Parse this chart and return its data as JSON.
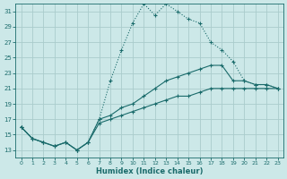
{
  "xlabel": "Humidex (Indice chaleur)",
  "bg_color": "#cce8e8",
  "grid_color": "#aacccc",
  "line_color": "#1a6b6b",
  "xlim": [
    -0.5,
    23.5
  ],
  "ylim": [
    12,
    32
  ],
  "yticks": [
    13,
    15,
    17,
    19,
    21,
    23,
    25,
    27,
    29,
    31
  ],
  "xticks": [
    0,
    1,
    2,
    3,
    4,
    5,
    6,
    7,
    8,
    9,
    10,
    11,
    12,
    13,
    14,
    15,
    16,
    17,
    18,
    19,
    20,
    21,
    22,
    23
  ],
  "series1_x": [
    0,
    1,
    2,
    3,
    4,
    5,
    6,
    7,
    8,
    9,
    10,
    11,
    12,
    13,
    14,
    15,
    16,
    17,
    18,
    19,
    20,
    21,
    22,
    23
  ],
  "series1_y": [
    16,
    14.5,
    14,
    13.5,
    14,
    13,
    14,
    17,
    22,
    26,
    29.5,
    32,
    30.5,
    32,
    31,
    30,
    29.5,
    27,
    26,
    24.5,
    22,
    21.5,
    21.5,
    21
  ],
  "series2_x": [
    0,
    1,
    2,
    3,
    4,
    5,
    6,
    7,
    8,
    9,
    10,
    11,
    12,
    13,
    14,
    15,
    16,
    17,
    18,
    19,
    20,
    21,
    22,
    23
  ],
  "series2_y": [
    16,
    14.5,
    14,
    13.5,
    14,
    13,
    14,
    17,
    17.5,
    18.5,
    19,
    20,
    21,
    22,
    22.5,
    23,
    23.5,
    24,
    24,
    22,
    22,
    21.5,
    21.5,
    21
  ],
  "series3_x": [
    0,
    1,
    2,
    3,
    4,
    5,
    6,
    7,
    8,
    9,
    10,
    11,
    12,
    13,
    14,
    15,
    16,
    17,
    18,
    19,
    20,
    21,
    22,
    23
  ],
  "series3_y": [
    16,
    14.5,
    14,
    13.5,
    14,
    13,
    14,
    16.5,
    17,
    17.5,
    18,
    18.5,
    19,
    19.5,
    20,
    20,
    20.5,
    21,
    21,
    21,
    21,
    21,
    21,
    21
  ]
}
